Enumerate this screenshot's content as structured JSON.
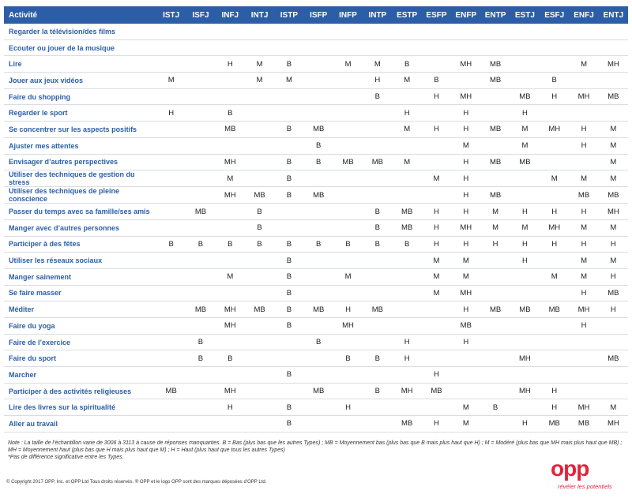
{
  "table": {
    "header": [
      "Activité",
      "ISTJ",
      "ISFJ",
      "INFJ",
      "INTJ",
      "ISTP",
      "ISFP",
      "INFP",
      "INTP",
      "ESTP",
      "ESFP",
      "ENFP",
      "ENTP",
      "ESTJ",
      "ESFJ",
      "ENFJ",
      "ENTJ"
    ],
    "rows": [
      [
        "Regarder la télévision/des films",
        null,
        null,
        null,
        null,
        null,
        null,
        null,
        null,
        null,
        null,
        null,
        null,
        null,
        null,
        null,
        null
      ],
      [
        "Ecouter ou jouer de la musique",
        null,
        null,
        null,
        null,
        null,
        null,
        null,
        null,
        null,
        null,
        null,
        null,
        null,
        null,
        null,
        null
      ],
      [
        "Lire",
        null,
        null,
        "H",
        "M",
        "B",
        null,
        "M",
        "M",
        "B",
        null,
        "MH",
        "MB",
        null,
        null,
        "M",
        "MH"
      ],
      [
        "Jouer aux jeux vidéos",
        "M",
        null,
        null,
        "M",
        "M",
        null,
        null,
        "H",
        "M",
        "B",
        null,
        "MB",
        null,
        "B",
        null,
        null
      ],
      [
        "Faire du shopping",
        null,
        null,
        null,
        null,
        null,
        null,
        null,
        "B",
        null,
        "H",
        "MH",
        null,
        "MB",
        "H",
        "MH",
        "MB"
      ],
      [
        "Regarder le sport",
        "H",
        null,
        "B",
        null,
        null,
        null,
        null,
        null,
        "H",
        null,
        "H",
        null,
        "H",
        null,
        null,
        null
      ],
      [
        "Se concentrer sur les aspects positifs",
        null,
        null,
        "MB",
        null,
        "B",
        "MB",
        null,
        null,
        "M",
        "H",
        "H",
        "MB",
        "M",
        "MH",
        "H",
        "M"
      ],
      [
        "Ajuster mes attentes",
        null,
        null,
        null,
        null,
        null,
        "B",
        null,
        null,
        null,
        null,
        "M",
        null,
        "M",
        null,
        "H",
        "M"
      ],
      [
        "Envisager d’autres perspectives",
        null,
        null,
        "MH",
        null,
        "B",
        "B",
        "MB",
        "MB",
        "M",
        null,
        "H",
        "MB",
        "MB",
        null,
        null,
        "M"
      ],
      [
        "Utiliser des techniques de gestion du stress",
        null,
        null,
        "M",
        null,
        "B",
        null,
        null,
        null,
        null,
        "M",
        "H",
        null,
        null,
        "M",
        "M",
        "M"
      ],
      [
        "Utiliser des techniques de pleine conscience",
        null,
        null,
        "MH",
        "MB",
        "B",
        "MB",
        null,
        null,
        null,
        null,
        "H",
        "MB",
        null,
        null,
        "MB",
        "MB"
      ],
      [
        "Passer du temps avec sa famille/ses amis",
        null,
        "MB",
        null,
        "B",
        null,
        null,
        null,
        "B",
        "MB",
        "H",
        "H",
        "M",
        "H",
        "H",
        "H",
        "MH"
      ],
      [
        "Manger avec d’autres personnes",
        null,
        null,
        null,
        "B",
        null,
        null,
        null,
        "B",
        "MB",
        "H",
        "MH",
        "M",
        "M",
        "MH",
        "M",
        "M"
      ],
      [
        "Participer à des fêtes",
        "B",
        "B",
        "B",
        "B",
        "B",
        "B",
        "B",
        "B",
        "B",
        "H",
        "H",
        "H",
        "H",
        "H",
        "H",
        "H"
      ],
      [
        "Utiliser les réseaux sociaux",
        null,
        null,
        null,
        null,
        "B",
        null,
        null,
        null,
        null,
        "M",
        "M",
        null,
        "H",
        null,
        "M",
        "M"
      ],
      [
        "Manger sainement",
        null,
        null,
        "M",
        null,
        "B",
        null,
        "M",
        null,
        null,
        "M",
        "M",
        null,
        null,
        "M",
        "M",
        "H"
      ],
      [
        "Se faire masser",
        null,
        null,
        null,
        null,
        "B",
        null,
        null,
        null,
        null,
        "M",
        "MH",
        null,
        null,
        null,
        "H",
        "MB"
      ],
      [
        "Méditer",
        null,
        "MB",
        "MH",
        "MB",
        "B",
        "MB",
        "H",
        "MB",
        null,
        null,
        "H",
        "MB",
        "MB",
        "MB",
        "MH",
        "H"
      ],
      [
        "Faire du yoga",
        null,
        null,
        "MH",
        null,
        "B",
        null,
        "MH",
        null,
        null,
        null,
        "MB",
        null,
        null,
        null,
        "H",
        null
      ],
      [
        "Faire de l’exercice",
        null,
        "B",
        null,
        null,
        null,
        "B",
        null,
        null,
        "H",
        null,
        "H",
        null,
        null,
        null,
        null,
        null
      ],
      [
        "Faire du sport",
        null,
        "B",
        "B",
        null,
        null,
        null,
        "B",
        "B",
        "H",
        null,
        null,
        null,
        "MH",
        null,
        null,
        "MB"
      ],
      [
        "Marcher",
        null,
        null,
        null,
        null,
        "B",
        null,
        null,
        null,
        null,
        "H",
        null,
        null,
        null,
        null,
        null,
        null
      ],
      [
        "Participer à des activités religieuses",
        "MB",
        null,
        "MH",
        null,
        null,
        "MB",
        null,
        "B",
        "MH",
        "MB",
        null,
        null,
        "MH",
        "H",
        null,
        null
      ],
      [
        "Lire des livres sur la spiritualité",
        null,
        null,
        "H",
        null,
        "B",
        null,
        "H",
        null,
        null,
        null,
        "M",
        "B",
        null,
        "H",
        "MH",
        "M"
      ],
      [
        "Aller au travail",
        null,
        null,
        null,
        null,
        "B",
        null,
        null,
        null,
        "MB",
        "H",
        "M",
        null,
        "H",
        "MB",
        "MB",
        "MH"
      ]
    ]
  },
  "footer": {
    "note": "Note : La taille de l’échantillon varie de 3006 à 3113 à cause de réponses manquantes. B = Bas (plus bas que les autres Types) ; MB = Moyennement bas (plus bas que B mais plus haut que H) ; M = Modéré (plus bas que MH mais plus haut que MB) ; MH = Moyennement haut (plus bas que H mais plus haut que M) ; H = Haut (plus haut que tous les autres Types)",
    "note2": "*Pas de différence significative entre les Types.",
    "copyright": "© Copyright 2017 OPP, Inc. et OPP Ltd Tous droits réservés. ® OPP et le logo OPP sont des marques déposées d’OPP Ltd.",
    "logo": "opp",
    "tagline": "révéler les potentiels"
  }
}
